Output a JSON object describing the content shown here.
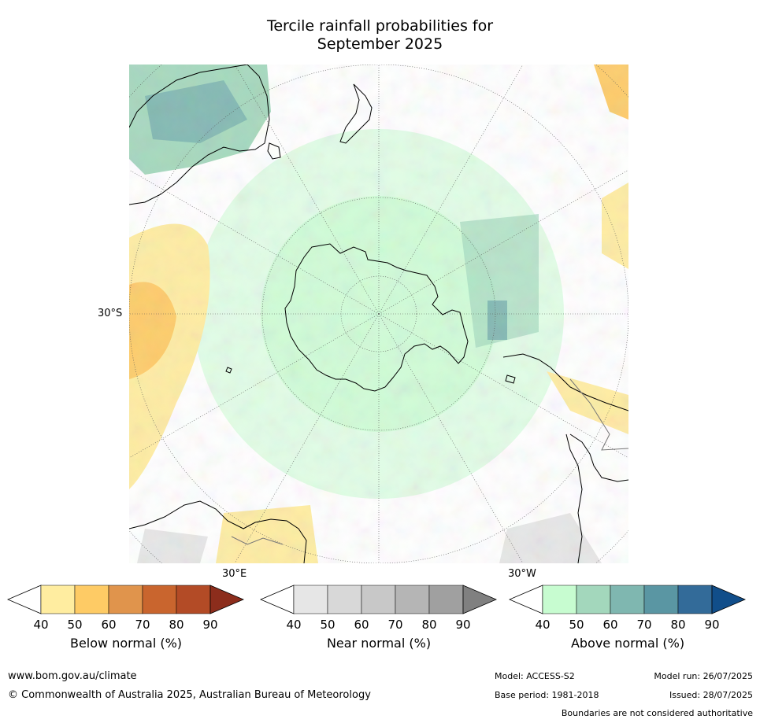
{
  "title": {
    "line1": "Tercile rainfall probabilities for",
    "line2": "September 2025"
  },
  "map": {
    "projection": "south-polar-stereographic",
    "labels": {
      "lat_30s": "30°S",
      "lon_30e": "30°E",
      "lon_30w": "30°W"
    }
  },
  "colorbars": [
    {
      "name": "below",
      "label": "Below normal (%)",
      "ticks": [
        "40",
        "50",
        "60",
        "70",
        "80",
        "90"
      ],
      "colors": [
        "#ffffff",
        "#ffeda0",
        "#fecb65",
        "#e0944c",
        "#c9652e",
        "#b34b26",
        "#8c2d1c"
      ]
    },
    {
      "name": "near",
      "label": "Near normal (%)",
      "ticks": [
        "40",
        "50",
        "60",
        "70",
        "80",
        "90"
      ],
      "colors": [
        "#ffffff",
        "#e6e6e6",
        "#d8d8d8",
        "#c8c8c8",
        "#b5b5b5",
        "#a0a0a0",
        "#808080"
      ]
    },
    {
      "name": "above",
      "label": "Above normal (%)",
      "ticks": [
        "40",
        "50",
        "60",
        "70",
        "80",
        "90"
      ],
      "colors": [
        "#ffffff",
        "#c7fcd0",
        "#a3d7bc",
        "#7fb7b0",
        "#5a96a3",
        "#336b99",
        "#114e8a"
      ]
    }
  ],
  "footer": {
    "website": "www.bom.gov.au/climate",
    "copyright": "© Commonwealth of Australia 2025, Australian Bureau of Meteorology",
    "model": "Model: ACCESS-S2",
    "model_run": "Model run: 26/07/2025",
    "base_period": "Base period: 1981-2018",
    "issued": "Issued: 28/07/2025",
    "disclaimer": "Boundaries are not considered authoritative"
  }
}
